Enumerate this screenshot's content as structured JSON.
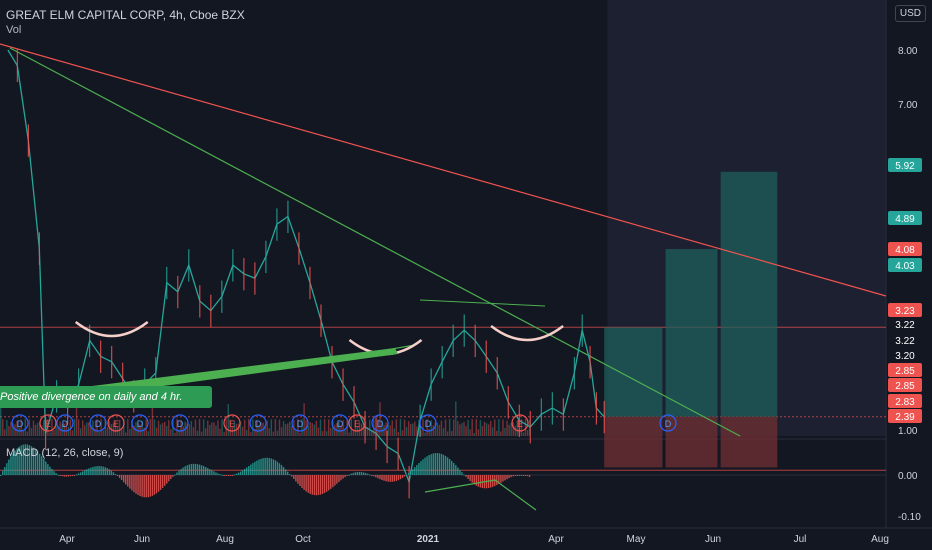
{
  "header": {
    "title": "GREAT ELM CAPITAL CORP, 4h, Cboe BZX",
    "vol_label": "Vol",
    "currency_button": "USD",
    "macd_label": "MACD (12, 26, close, 9)"
  },
  "annotation": {
    "text": "Positive divergence on daily and 4 hr."
  },
  "colors": {
    "background": "#131722",
    "up": "#26a69a",
    "down": "#ef5350",
    "trendline_green": "#4caf50",
    "trendline_red": "#ef5350",
    "macd_up": "#26a69a",
    "macd_down": "#ef5350",
    "box_teal": "#1f5f5b",
    "box_red": "#6b2e33"
  },
  "chart_data": {
    "type": "line",
    "title": "GREAT ELM CAPITAL CORP, 4h, Cboe BZX",
    "x_tick_labels": [
      "Apr",
      "Jun",
      "Aug",
      "Oct",
      "2021",
      "Apr",
      "May",
      "Jun",
      "Jul",
      "Aug"
    ],
    "y_tick_labels": [
      "8.00",
      "7.00",
      "1.00"
    ],
    "y_axis_labels": [
      {
        "value": 5.92,
        "color": "#26a69a"
      },
      {
        "value": 4.89,
        "color": "#26a69a"
      },
      {
        "value": 4.08,
        "color": "#ef5350"
      },
      {
        "value": 4.03,
        "color": "#26a69a"
      },
      {
        "value": 3.23,
        "color": "#ef5350"
      },
      {
        "value": 3.22,
        "color": "#131722"
      },
      {
        "value": 3.22,
        "color": "#131722"
      },
      {
        "value": 3.2,
        "color": "#131722"
      },
      {
        "value": 2.85,
        "color": "#ef5350"
      },
      {
        "value": 2.85,
        "color": "#ef5350"
      },
      {
        "value": 2.83,
        "color": "#ef5350"
      },
      {
        "value": 2.39,
        "color": "#ef5350"
      }
    ],
    "macd_tick_labels": [
      "0.00",
      "-0.10"
    ],
    "price_series": [
      {
        "date": "2020-02-25",
        "close": 8.0
      },
      {
        "date": "2020-03-02",
        "close": 7.7
      },
      {
        "date": "2020-03-09",
        "close": 6.4
      },
      {
        "date": "2020-03-16",
        "close": 4.9
      },
      {
        "date": "2020-03-20",
        "close": 3.1
      },
      {
        "date": "2020-03-27",
        "close": 3.4
      },
      {
        "date": "2020-04-03",
        "close": 3.3
      },
      {
        "date": "2020-04-10",
        "close": 3.5
      },
      {
        "date": "2020-04-17",
        "close": 3.9
      },
      {
        "date": "2020-04-24",
        "close": 3.75
      },
      {
        "date": "2020-05-01",
        "close": 3.7
      },
      {
        "date": "2020-05-08",
        "close": 3.55
      },
      {
        "date": "2020-05-15",
        "close": 3.4
      },
      {
        "date": "2020-05-22",
        "close": 3.5
      },
      {
        "date": "2020-05-29",
        "close": 3.6
      },
      {
        "date": "2020-06-05",
        "close": 4.5
      },
      {
        "date": "2020-06-12",
        "close": 4.4
      },
      {
        "date": "2020-06-19",
        "close": 4.7
      },
      {
        "date": "2020-06-26",
        "close": 4.3
      },
      {
        "date": "2020-07-03",
        "close": 4.2
      },
      {
        "date": "2020-07-10",
        "close": 4.35
      },
      {
        "date": "2020-07-17",
        "close": 4.7
      },
      {
        "date": "2020-07-24",
        "close": 4.6
      },
      {
        "date": "2020-07-31",
        "close": 4.55
      },
      {
        "date": "2020-08-07",
        "close": 4.8
      },
      {
        "date": "2020-08-14",
        "close": 5.2
      },
      {
        "date": "2020-08-21",
        "close": 5.3
      },
      {
        "date": "2020-08-28",
        "close": 4.9
      },
      {
        "date": "2020-09-04",
        "close": 4.5
      },
      {
        "date": "2020-09-11",
        "close": 4.1
      },
      {
        "date": "2020-09-18",
        "close": 3.7
      },
      {
        "date": "2020-09-25",
        "close": 3.5
      },
      {
        "date": "2020-10-02",
        "close": 3.35
      },
      {
        "date": "2020-10-09",
        "close": 3.15
      },
      {
        "date": "2020-10-16",
        "close": 3.1
      },
      {
        "date": "2020-10-23",
        "close": 3.0
      },
      {
        "date": "2020-10-30",
        "close": 2.95
      },
      {
        "date": "2020-11-06",
        "close": 2.75
      },
      {
        "date": "2020-11-13",
        "close": 3.2
      },
      {
        "date": "2020-11-20",
        "close": 3.5
      },
      {
        "date": "2020-11-27",
        "close": 3.7
      },
      {
        "date": "2020-12-04",
        "close": 3.9
      },
      {
        "date": "2020-12-11",
        "close": 4.0
      },
      {
        "date": "2020-12-18",
        "close": 3.9
      },
      {
        "date": "2020-12-25",
        "close": 3.75
      },
      {
        "date": "2021-01-01",
        "close": 3.6
      },
      {
        "date": "2021-01-08",
        "close": 3.35
      },
      {
        "date": "2021-01-15",
        "close": 3.2
      },
      {
        "date": "2021-01-22",
        "close": 3.15
      },
      {
        "date": "2021-01-29",
        "close": 3.25
      },
      {
        "date": "2021-02-05",
        "close": 3.3
      },
      {
        "date": "2021-02-12",
        "close": 3.25
      },
      {
        "date": "2021-02-19",
        "close": 3.6
      },
      {
        "date": "2021-02-24",
        "close": 4.0
      },
      {
        "date": "2021-03-01",
        "close": 3.7
      },
      {
        "date": "2021-03-05",
        "close": 3.3
      },
      {
        "date": "2021-03-10",
        "close": 3.23
      }
    ],
    "horizontal_levels": [
      4.03,
      3.23,
      2.83
    ],
    "event_markers": [
      "D",
      "E",
      "D",
      "D",
      "E",
      "D",
      "D",
      "E",
      "D",
      "D",
      "D",
      "E",
      "D",
      "D",
      "E",
      "D",
      "D",
      "E",
      "D",
      "E",
      "E"
    ]
  }
}
